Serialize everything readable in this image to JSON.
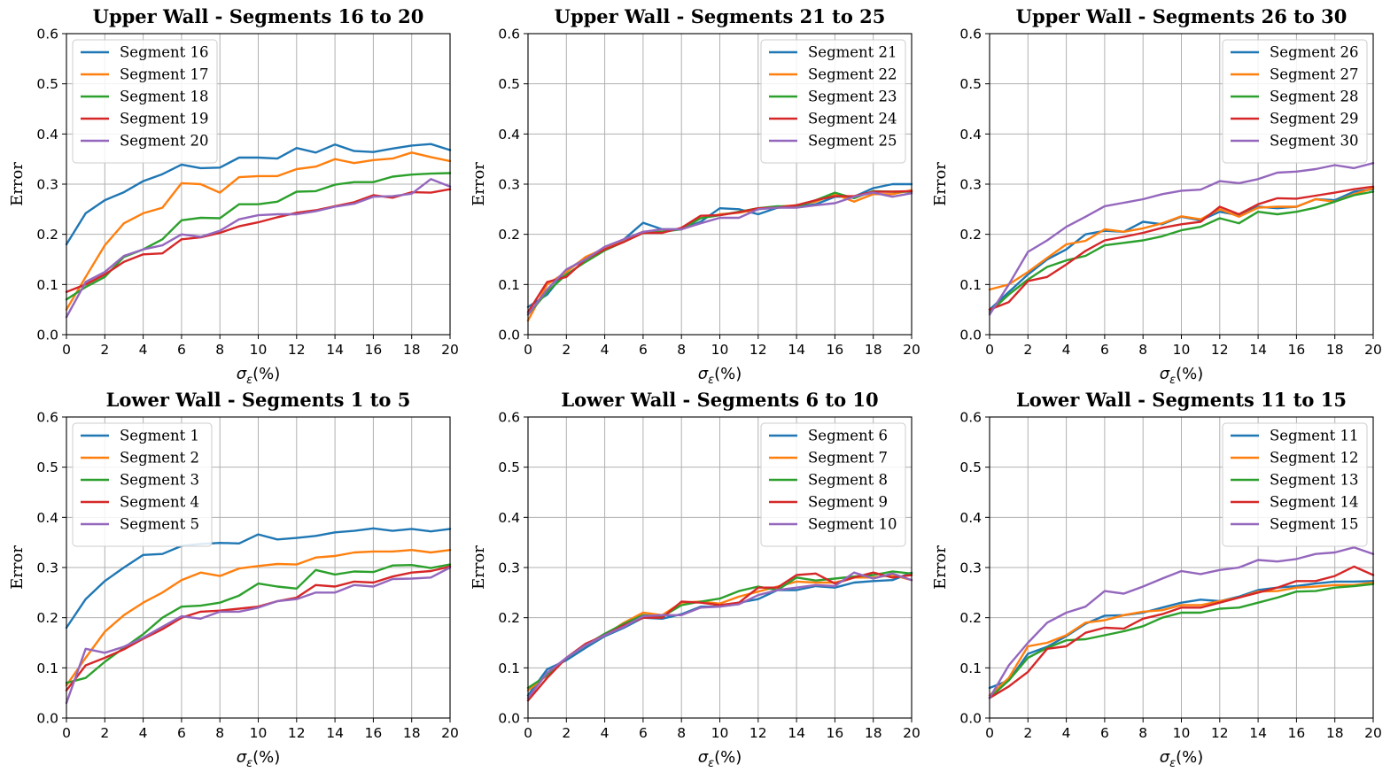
{
  "colors": [
    "#1f77b4",
    "#ff7f0e",
    "#2ca02c",
    "#d62728",
    "#9467bd"
  ],
  "chart_data": [
    {
      "type": "line",
      "title": "Upper Wall - Segments 16 to 20",
      "xlabel": "σ_ε(%)",
      "ylabel": "Error",
      "xlim": [
        0,
        20
      ],
      "ylim": [
        0,
        0.6
      ],
      "xticks": [
        "0",
        "2",
        "4",
        "6",
        "8",
        "10",
        "12",
        "14",
        "16",
        "18",
        "20"
      ],
      "yticks": [
        "0.0",
        "0.1",
        "0.2",
        "0.3",
        "0.4",
        "0.5",
        "0.6"
      ],
      "grid": true,
      "legend": "top-left",
      "x": [
        0,
        1,
        2,
        3,
        4,
        5,
        6,
        7,
        8,
        9,
        10,
        11,
        12,
        13,
        14,
        15,
        16,
        17,
        18,
        19,
        20
      ],
      "series": [
        {
          "name": "Segment 16",
          "values": [
            0.18,
            0.242,
            0.268,
            0.284,
            0.306,
            0.32,
            0.339,
            0.332,
            0.333,
            0.353,
            0.353,
            0.351,
            0.372,
            0.363,
            0.379,
            0.366,
            0.364,
            0.371,
            0.377,
            0.38,
            0.368
          ]
        },
        {
          "name": "Segment 17",
          "values": [
            0.05,
            0.115,
            0.178,
            0.222,
            0.242,
            0.253,
            0.302,
            0.3,
            0.283,
            0.314,
            0.316,
            0.316,
            0.33,
            0.335,
            0.35,
            0.342,
            0.348,
            0.351,
            0.363,
            0.354,
            0.346
          ]
        },
        {
          "name": "Segment 18",
          "values": [
            0.07,
            0.095,
            0.115,
            0.155,
            0.17,
            0.19,
            0.228,
            0.233,
            0.232,
            0.26,
            0.26,
            0.265,
            0.285,
            0.286,
            0.299,
            0.304,
            0.304,
            0.315,
            0.319,
            0.321,
            0.322
          ]
        },
        {
          "name": "Segment 19",
          "values": [
            0.085,
            0.1,
            0.12,
            0.145,
            0.16,
            0.162,
            0.19,
            0.194,
            0.203,
            0.216,
            0.224,
            0.234,
            0.243,
            0.248,
            0.256,
            0.264,
            0.278,
            0.273,
            0.284,
            0.283,
            0.29
          ]
        },
        {
          "name": "Segment 20",
          "values": [
            0.035,
            0.105,
            0.125,
            0.157,
            0.17,
            0.178,
            0.2,
            0.195,
            0.207,
            0.23,
            0.238,
            0.24,
            0.24,
            0.246,
            0.255,
            0.261,
            0.275,
            0.276,
            0.281,
            0.31,
            0.295
          ]
        }
      ]
    },
    {
      "type": "line",
      "title": "Upper Wall - Segments 21 to 25",
      "xlabel": "σ_ε(%)",
      "ylabel": "Error",
      "xlim": [
        0,
        20
      ],
      "ylim": [
        0,
        0.6
      ],
      "xticks": [
        "0",
        "2",
        "4",
        "6",
        "8",
        "10",
        "12",
        "14",
        "16",
        "18",
        "20"
      ],
      "yticks": [
        "0.0",
        "0.1",
        "0.2",
        "0.3",
        "0.4",
        "0.5",
        "0.6"
      ],
      "grid": true,
      "legend": "top-right",
      "x": [
        0,
        1,
        2,
        3,
        4,
        5,
        6,
        7,
        8,
        9,
        10,
        11,
        12,
        13,
        14,
        15,
        16,
        17,
        18,
        19,
        20
      ],
      "series": [
        {
          "name": "Segment 21",
          "values": [
            0.055,
            0.08,
            0.128,
            0.153,
            0.172,
            0.19,
            0.223,
            0.21,
            0.21,
            0.225,
            0.252,
            0.25,
            0.24,
            0.253,
            0.255,
            0.26,
            0.275,
            0.275,
            0.292,
            0.3,
            0.3
          ]
        },
        {
          "name": "Segment 22",
          "values": [
            0.028,
            0.1,
            0.125,
            0.155,
            0.172,
            0.19,
            0.205,
            0.205,
            0.212,
            0.232,
            0.24,
            0.243,
            0.25,
            0.255,
            0.258,
            0.265,
            0.28,
            0.265,
            0.28,
            0.28,
            0.288
          ]
        },
        {
          "name": "Segment 23",
          "values": [
            0.04,
            0.085,
            0.12,
            0.145,
            0.168,
            0.185,
            0.203,
            0.205,
            0.21,
            0.232,
            0.238,
            0.245,
            0.252,
            0.256,
            0.255,
            0.268,
            0.283,
            0.272,
            0.286,
            0.285,
            0.285
          ]
        },
        {
          "name": "Segment 24",
          "values": [
            0.045,
            0.105,
            0.115,
            0.15,
            0.17,
            0.185,
            0.203,
            0.203,
            0.213,
            0.237,
            0.238,
            0.244,
            0.252,
            0.253,
            0.258,
            0.268,
            0.276,
            0.276,
            0.285,
            0.285,
            0.286
          ]
        },
        {
          "name": "Segment 25",
          "values": [
            0.04,
            0.09,
            0.13,
            0.15,
            0.175,
            0.19,
            0.205,
            0.21,
            0.21,
            0.222,
            0.233,
            0.233,
            0.25,
            0.253,
            0.253,
            0.258,
            0.262,
            0.275,
            0.283,
            0.275,
            0.282
          ]
        }
      ]
    },
    {
      "type": "line",
      "title": "Upper Wall - Segments 26 to 30",
      "xlabel": "σ_ε(%)",
      "ylabel": "Error",
      "xlim": [
        0,
        20
      ],
      "ylim": [
        0,
        0.6
      ],
      "xticks": [
        "0",
        "2",
        "4",
        "6",
        "8",
        "10",
        "12",
        "14",
        "16",
        "18",
        "20"
      ],
      "yticks": [
        "0.0",
        "0.1",
        "0.2",
        "0.3",
        "0.4",
        "0.5",
        "0.6"
      ],
      "grid": true,
      "legend": "top-right",
      "x": [
        0,
        1,
        2,
        3,
        4,
        5,
        6,
        7,
        8,
        9,
        10,
        11,
        12,
        13,
        14,
        15,
        16,
        17,
        18,
        19,
        20
      ],
      "series": [
        {
          "name": "Segment 26",
          "values": [
            0.05,
            0.085,
            0.12,
            0.15,
            0.17,
            0.2,
            0.207,
            0.205,
            0.225,
            0.22,
            0.235,
            0.228,
            0.245,
            0.238,
            0.255,
            0.252,
            0.255,
            0.27,
            0.268,
            0.285,
            0.29
          ]
        },
        {
          "name": "Segment 27",
          "values": [
            0.09,
            0.1,
            0.125,
            0.153,
            0.18,
            0.187,
            0.21,
            0.205,
            0.212,
            0.222,
            0.236,
            0.23,
            0.25,
            0.235,
            0.253,
            0.255,
            0.255,
            0.27,
            0.265,
            0.28,
            0.292
          ]
        },
        {
          "name": "Segment 28",
          "values": [
            0.045,
            0.08,
            0.11,
            0.135,
            0.148,
            0.157,
            0.178,
            0.183,
            0.188,
            0.196,
            0.208,
            0.215,
            0.232,
            0.222,
            0.245,
            0.24,
            0.245,
            0.253,
            0.265,
            0.278,
            0.285
          ]
        },
        {
          "name": "Segment 29",
          "values": [
            0.05,
            0.065,
            0.107,
            0.115,
            0.14,
            0.167,
            0.188,
            0.195,
            0.203,
            0.213,
            0.22,
            0.225,
            0.255,
            0.24,
            0.26,
            0.272,
            0.271,
            0.277,
            0.283,
            0.29,
            0.295
          ]
        },
        {
          "name": "Segment 30",
          "values": [
            0.04,
            0.1,
            0.165,
            0.188,
            0.215,
            0.235,
            0.256,
            0.263,
            0.27,
            0.28,
            0.287,
            0.289,
            0.306,
            0.302,
            0.31,
            0.323,
            0.325,
            0.33,
            0.338,
            0.332,
            0.342
          ]
        }
      ]
    },
    {
      "type": "line",
      "title": "Lower Wall - Segments 1 to 5",
      "xlabel": "σ_ε(%)",
      "ylabel": "Error",
      "xlim": [
        0,
        20
      ],
      "ylim": [
        0,
        0.6
      ],
      "xticks": [
        "0",
        "2",
        "4",
        "6",
        "8",
        "10",
        "12",
        "14",
        "16",
        "18",
        "20"
      ],
      "yticks": [
        "0.0",
        "0.1",
        "0.2",
        "0.3",
        "0.4",
        "0.5",
        "0.6"
      ],
      "grid": true,
      "legend": "top-left",
      "x": [
        0,
        1,
        2,
        3,
        4,
        5,
        6,
        7,
        8,
        9,
        10,
        11,
        12,
        13,
        14,
        15,
        16,
        17,
        18,
        19,
        20
      ],
      "series": [
        {
          "name": "Segment 1",
          "values": [
            0.18,
            0.237,
            0.273,
            0.3,
            0.325,
            0.327,
            0.343,
            0.347,
            0.349,
            0.348,
            0.366,
            0.356,
            0.359,
            0.363,
            0.37,
            0.373,
            0.378,
            0.373,
            0.377,
            0.372,
            0.377
          ]
        },
        {
          "name": "Segment 2",
          "values": [
            0.065,
            0.12,
            0.172,
            0.205,
            0.23,
            0.25,
            0.275,
            0.29,
            0.283,
            0.298,
            0.303,
            0.307,
            0.306,
            0.32,
            0.323,
            0.33,
            0.332,
            0.332,
            0.335,
            0.33,
            0.335
          ]
        },
        {
          "name": "Segment 3",
          "values": [
            0.07,
            0.08,
            0.112,
            0.14,
            0.167,
            0.2,
            0.222,
            0.224,
            0.23,
            0.244,
            0.268,
            0.262,
            0.258,
            0.295,
            0.286,
            0.292,
            0.291,
            0.304,
            0.305,
            0.299,
            0.306
          ]
        },
        {
          "name": "Segment 4",
          "values": [
            0.055,
            0.105,
            0.12,
            0.137,
            0.158,
            0.177,
            0.2,
            0.212,
            0.214,
            0.218,
            0.222,
            0.233,
            0.24,
            0.265,
            0.262,
            0.272,
            0.27,
            0.282,
            0.29,
            0.293,
            0.302
          ]
        },
        {
          "name": "Segment 5",
          "values": [
            0.03,
            0.138,
            0.13,
            0.142,
            0.16,
            0.182,
            0.203,
            0.198,
            0.212,
            0.212,
            0.22,
            0.233,
            0.237,
            0.25,
            0.25,
            0.265,
            0.262,
            0.277,
            0.278,
            0.28,
            0.3
          ]
        }
      ]
    },
    {
      "type": "line",
      "title": "Lower Wall - Segments 6 to 10",
      "xlabel": "σ_ε(%)",
      "ylabel": "Error",
      "xlim": [
        0,
        20
      ],
      "ylim": [
        0,
        0.6
      ],
      "xticks": [
        "0",
        "2",
        "4",
        "6",
        "8",
        "10",
        "12",
        "14",
        "16",
        "18",
        "20"
      ],
      "yticks": [
        "0.0",
        "0.1",
        "0.2",
        "0.3",
        "0.4",
        "0.5",
        "0.6"
      ],
      "grid": true,
      "legend": "top-right",
      "x": [
        0,
        1,
        2,
        3,
        4,
        5,
        6,
        7,
        8,
        9,
        10,
        11,
        12,
        13,
        14,
        15,
        16,
        17,
        18,
        19,
        20
      ],
      "series": [
        {
          "name": "Segment 6",
          "values": [
            0.045,
            0.097,
            0.115,
            0.14,
            0.163,
            0.18,
            0.2,
            0.198,
            0.207,
            0.222,
            0.222,
            0.23,
            0.237,
            0.255,
            0.255,
            0.263,
            0.26,
            0.27,
            0.273,
            0.275,
            0.29
          ]
        },
        {
          "name": "Segment 7",
          "values": [
            0.055,
            0.085,
            0.12,
            0.145,
            0.165,
            0.19,
            0.21,
            0.205,
            0.23,
            0.232,
            0.228,
            0.242,
            0.252,
            0.262,
            0.272,
            0.27,
            0.27,
            0.28,
            0.28,
            0.285,
            0.275
          ]
        },
        {
          "name": "Segment 8",
          "values": [
            0.06,
            0.085,
            0.12,
            0.145,
            0.168,
            0.188,
            0.205,
            0.202,
            0.225,
            0.232,
            0.238,
            0.253,
            0.262,
            0.255,
            0.28,
            0.274,
            0.278,
            0.282,
            0.285,
            0.292,
            0.288
          ]
        },
        {
          "name": "Segment 9",
          "values": [
            0.035,
            0.08,
            0.12,
            0.148,
            0.165,
            0.185,
            0.2,
            0.2,
            0.232,
            0.23,
            0.225,
            0.23,
            0.26,
            0.26,
            0.285,
            0.288,
            0.268,
            0.28,
            0.29,
            0.28,
            0.285
          ]
        },
        {
          "name": "Segment 10",
          "values": [
            0.04,
            0.09,
            0.12,
            0.145,
            0.165,
            0.182,
            0.203,
            0.205,
            0.205,
            0.22,
            0.222,
            0.227,
            0.245,
            0.255,
            0.26,
            0.265,
            0.263,
            0.29,
            0.278,
            0.288,
            0.275
          ]
        }
      ]
    },
    {
      "type": "line",
      "title": "Lower Wall - Segments 11 to 15",
      "xlabel": "σ_ε(%)",
      "ylabel": "Error",
      "xlim": [
        0,
        20
      ],
      "ylim": [
        0,
        0.6
      ],
      "xticks": [
        "0",
        "2",
        "4",
        "6",
        "8",
        "10",
        "12",
        "14",
        "16",
        "18",
        "20"
      ],
      "yticks": [
        "0.0",
        "0.1",
        "0.2",
        "0.3",
        "0.4",
        "0.5",
        "0.6"
      ],
      "grid": true,
      "legend": "top-right",
      "x": [
        0,
        1,
        2,
        3,
        4,
        5,
        6,
        7,
        8,
        9,
        10,
        11,
        12,
        13,
        14,
        15,
        16,
        17,
        18,
        19,
        20
      ],
      "series": [
        {
          "name": "Segment 11",
          "values": [
            0.06,
            0.075,
            0.128,
            0.142,
            0.163,
            0.188,
            0.204,
            0.205,
            0.21,
            0.22,
            0.23,
            0.236,
            0.233,
            0.242,
            0.255,
            0.26,
            0.263,
            0.268,
            0.272,
            0.272,
            0.273
          ]
        },
        {
          "name": "Segment 12",
          "values": [
            0.045,
            0.08,
            0.143,
            0.15,
            0.165,
            0.19,
            0.195,
            0.205,
            0.212,
            0.215,
            0.225,
            0.225,
            0.233,
            0.24,
            0.252,
            0.253,
            0.26,
            0.262,
            0.265,
            0.265,
            0.27
          ]
        },
        {
          "name": "Segment 13",
          "values": [
            0.04,
            0.075,
            0.12,
            0.14,
            0.155,
            0.157,
            0.165,
            0.173,
            0.183,
            0.2,
            0.21,
            0.21,
            0.218,
            0.22,
            0.23,
            0.24,
            0.252,
            0.253,
            0.26,
            0.263,
            0.267
          ]
        },
        {
          "name": "Segment 14",
          "values": [
            0.04,
            0.063,
            0.092,
            0.138,
            0.143,
            0.17,
            0.18,
            0.178,
            0.198,
            0.207,
            0.22,
            0.22,
            0.23,
            0.24,
            0.25,
            0.26,
            0.273,
            0.273,
            0.283,
            0.302,
            0.285
          ]
        },
        {
          "name": "Segment 15",
          "values": [
            0.04,
            0.105,
            0.15,
            0.19,
            0.21,
            0.222,
            0.253,
            0.248,
            0.262,
            0.278,
            0.293,
            0.287,
            0.295,
            0.3,
            0.315,
            0.312,
            0.317,
            0.327,
            0.33,
            0.34,
            0.327
          ]
        }
      ]
    }
  ]
}
